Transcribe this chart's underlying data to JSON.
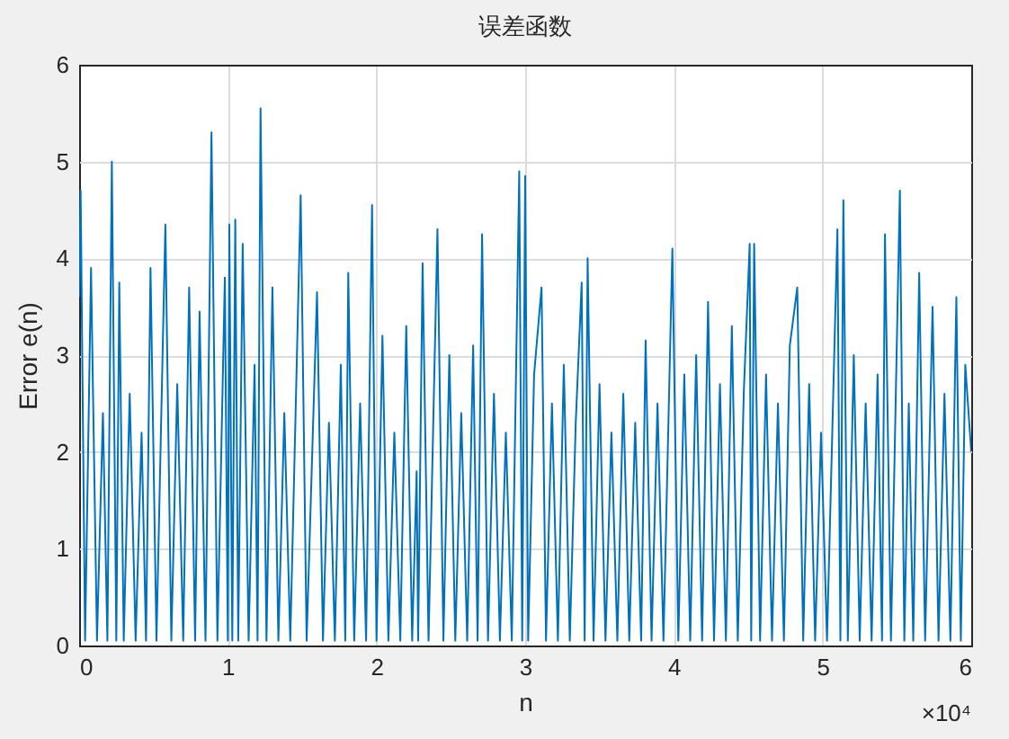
{
  "chart_data": {
    "type": "line",
    "title": "误差函数",
    "xlabel": "n",
    "ylabel": "Error e(n)",
    "xlim": [
      0,
      6
    ],
    "ylim": [
      0,
      6
    ],
    "xticks": [
      0,
      1,
      2,
      3,
      4,
      5,
      6
    ],
    "yticks": [
      0,
      1,
      2,
      3,
      4,
      5,
      6
    ],
    "grid": true,
    "annotations": [
      "×10⁴"
    ],
    "x": [
      0,
      0.01,
      0.04,
      0.08,
      0.12,
      0.16,
      0.19,
      0.22,
      0.25,
      0.27,
      0.3,
      0.34,
      0.38,
      0.42,
      0.45,
      0.48,
      0.52,
      0.58,
      0.62,
      0.66,
      0.7,
      0.74,
      0.78,
      0.81,
      0.85,
      0.89,
      0.93,
      0.98,
      1.0,
      1.01,
      1.03,
      1.05,
      1.07,
      1.1,
      1.14,
      1.18,
      1.2,
      1.22,
      1.26,
      1.3,
      1.34,
      1.38,
      1.42,
      1.49,
      1.53,
      1.6,
      1.64,
      1.68,
      1.72,
      1.76,
      1.79,
      1.81,
      1.85,
      1.89,
      1.93,
      1.97,
      2.0,
      2.04,
      2.08,
      2.12,
      2.16,
      2.2,
      2.24,
      2.27,
      2.28,
      2.31,
      2.35,
      2.41,
      2.45,
      2.49,
      2.53,
      2.57,
      2.61,
      2.65,
      2.68,
      2.71,
      2.75,
      2.79,
      2.83,
      2.87,
      2.91,
      2.96,
      2.98,
      3.0,
      3.02,
      3.06,
      3.11,
      3.14,
      3.18,
      3.22,
      3.26,
      3.3,
      3.34,
      3.38,
      3.4,
      3.42,
      3.46,
      3.5,
      3.54,
      3.58,
      3.62,
      3.66,
      3.7,
      3.74,
      3.78,
      3.81,
      3.85,
      3.89,
      3.93,
      3.99,
      4.03,
      4.07,
      4.11,
      4.15,
      4.19,
      4.23,
      4.27,
      4.31,
      4.35,
      4.39,
      4.43,
      4.47,
      4.51,
      4.52,
      4.54,
      4.58,
      4.62,
      4.66,
      4.7,
      4.74,
      4.78,
      4.83,
      4.87,
      4.91,
      4.95,
      4.99,
      5.03,
      5.1,
      5.12,
      5.14,
      5.17,
      5.21,
      5.25,
      5.29,
      5.33,
      5.37,
      5.4,
      5.42,
      5.46,
      5.52,
      5.55,
      5.58,
      5.61,
      5.65,
      5.69,
      5.74,
      5.78,
      5.82,
      5.86,
      5.9,
      5.93,
      5.96,
      6.0
    ],
    "series": [
      {
        "color": "#0072bd",
        "values": [
          3.6,
          4.7,
          0.05,
          3.9,
          0.05,
          2.4,
          0.05,
          5.0,
          0.05,
          3.75,
          0.05,
          2.6,
          0.05,
          2.2,
          0.05,
          3.9,
          0.05,
          4.35,
          0.05,
          2.7,
          0.05,
          3.7,
          0.05,
          3.45,
          0.05,
          5.3,
          0.05,
          3.8,
          0.05,
          4.35,
          0.05,
          4.4,
          0.05,
          4.15,
          0.05,
          2.9,
          0.05,
          5.55,
          0.05,
          3.7,
          0.05,
          2.4,
          0.05,
          4.65,
          0.05,
          3.65,
          0.05,
          2.3,
          0.05,
          2.9,
          0.05,
          3.85,
          0.05,
          2.5,
          0.05,
          4.55,
          0.05,
          3.2,
          0.05,
          2.2,
          0.05,
          3.3,
          0.05,
          1.8,
          0.05,
          3.95,
          0.05,
          4.3,
          0.05,
          3.0,
          0.05,
          2.4,
          0.05,
          3.1,
          0.05,
          4.25,
          0.05,
          2.6,
          0.05,
          2.2,
          0.05,
          4.9,
          0.05,
          4.85,
          0.05,
          2.8,
          3.7,
          0.05,
          2.5,
          0.05,
          2.9,
          0.05,
          2.3,
          3.75,
          0.05,
          4.0,
          0.05,
          2.7,
          0.05,
          2.2,
          0.05,
          2.6,
          0.05,
          2.3,
          0.05,
          3.15,
          0.05,
          2.5,
          0.05,
          4.1,
          0.05,
          2.8,
          0.05,
          3.0,
          0.05,
          3.55,
          0.05,
          2.7,
          0.05,
          3.3,
          0.05,
          2.6,
          4.15,
          0.05,
          4.15,
          0.05,
          2.8,
          0.05,
          2.5,
          0.05,
          3.1,
          3.7,
          0.05,
          2.7,
          0.05,
          2.2,
          0.05,
          4.3,
          0.05,
          4.6,
          0.05,
          3.0,
          0.05,
          2.5,
          0.05,
          2.8,
          0.05,
          4.25,
          0.05,
          4.7,
          0.05,
          2.5,
          0.05,
          3.85,
          0.05,
          3.5,
          0.05,
          2.6,
          0.05,
          3.6,
          0.05,
          2.9,
          2.0
        ]
      }
    ]
  }
}
